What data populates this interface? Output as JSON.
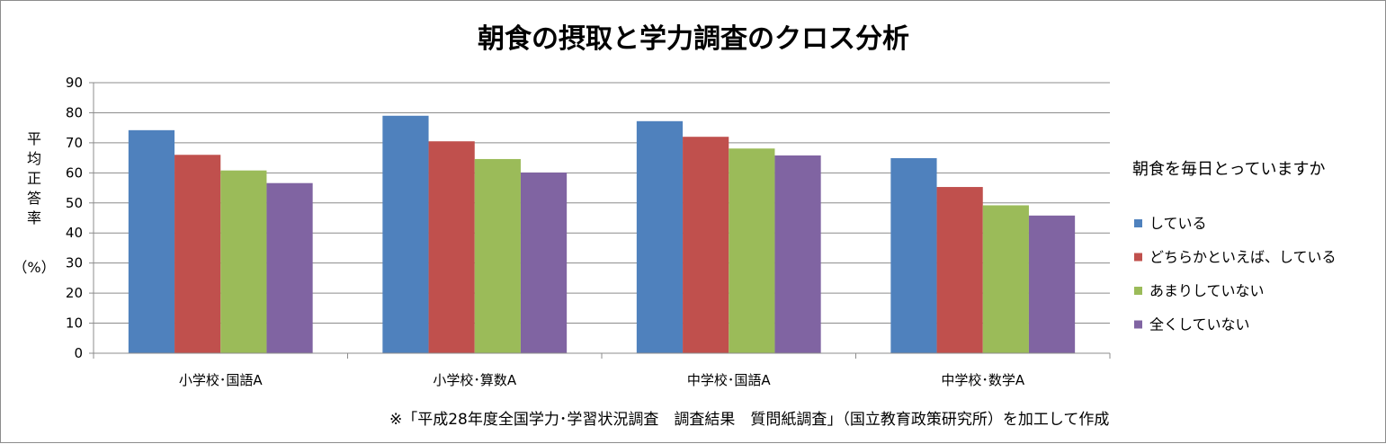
{
  "chart_data": {
    "type": "bar",
    "title": "朝食の摂取と学力調査のクロス分析",
    "ylabel": "平均正答率（%）",
    "ylabel_chars": [
      "平",
      "均",
      "正",
      "答",
      "率"
    ],
    "ylabel_unit": "（%）",
    "xlabel": "",
    "ylim": [
      0,
      90
    ],
    "yticks": [
      0,
      10,
      20,
      30,
      40,
      50,
      60,
      70,
      80,
      90
    ],
    "grid": true,
    "legend_position": "right",
    "legend_title": "朝食を毎日とっていますか",
    "categories": [
      "小学校･国語A",
      "小学校･算数A",
      "中学校･国語A",
      "中学校･数学A"
    ],
    "series": [
      {
        "name": "している",
        "color": "#4f81bd",
        "values": [
          74.2,
          79.0,
          77.2,
          64.9
        ]
      },
      {
        "name": "どちらかといえば、している",
        "color": "#c0504d",
        "values": [
          66.0,
          70.5,
          72.0,
          55.3
        ]
      },
      {
        "name": "あまりしていない",
        "color": "#9bbb59",
        "values": [
          60.8,
          64.6,
          68.1,
          49.2
        ]
      },
      {
        "name": "全くしていない",
        "color": "#8064a2",
        "values": [
          56.6,
          60.1,
          65.8,
          45.8
        ]
      }
    ],
    "source_note": "※「平成28年度全国学力･学習状況調査　調査結果　質問紙調査」（国立教育政策研究所）を加工して作成"
  }
}
